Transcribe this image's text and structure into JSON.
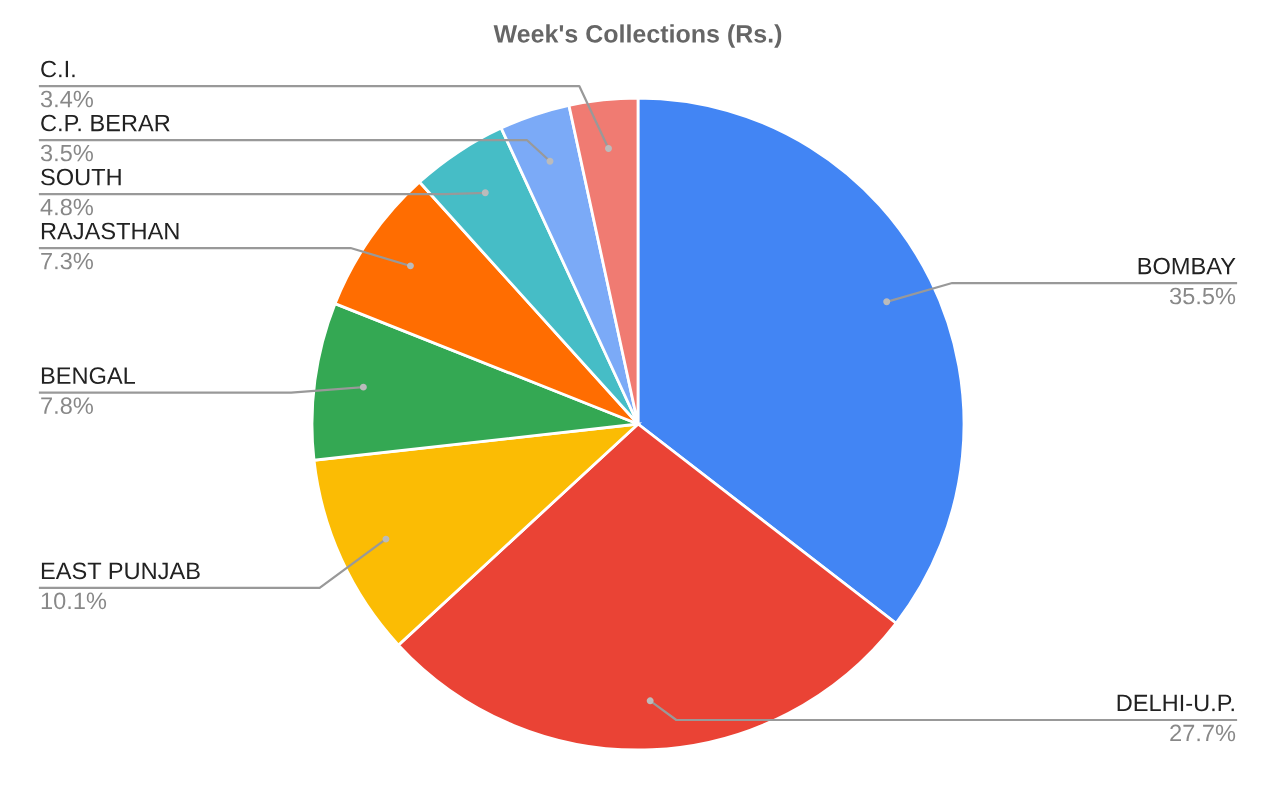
{
  "chart_data": {
    "type": "pie",
    "title": "Week's Collections (Rs.)",
    "categories": [
      "BOMBAY",
      "DELHI-U.P.",
      "EAST PUNJAB",
      "BENGAL",
      "RAJASTHAN",
      "SOUTH",
      "C.P. BERAR",
      "C.I."
    ],
    "values": [
      35.5,
      27.7,
      10.1,
      7.8,
      7.3,
      4.8,
      3.5,
      3.4
    ],
    "colors": [
      "#4285f4",
      "#ea4335",
      "#fbbc04",
      "#34a853",
      "#ff6d01",
      "#46bdc6",
      "#7baaf7",
      "#f07b72"
    ],
    "value_labels": [
      "35.5%",
      "27.7%",
      "10.1%",
      "7.8%",
      "7.3%",
      "4.8%",
      "3.5%",
      "3.4%"
    ]
  }
}
